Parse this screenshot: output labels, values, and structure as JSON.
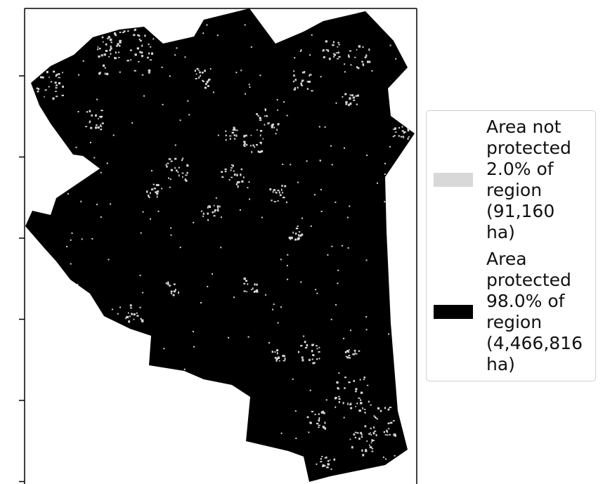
{
  "colors": {
    "not_protected": "#d8d8d8",
    "protected": "#000000",
    "frame": "#000000"
  },
  "legend": {
    "not_protected": {
      "label": "Area not\nprotected\n2.0% of\nregion\n(91,160\nha)",
      "share_pct": 2.0,
      "area_ha": 91160
    },
    "protected": {
      "label": "Area\nprotected\n98.0% of\nregion\n(4,466,816\nha)",
      "share_pct": 98.0,
      "area_ha": 4466816
    }
  },
  "axis": {
    "y_tick_count": 6,
    "tick_labels_visible": false
  }
}
